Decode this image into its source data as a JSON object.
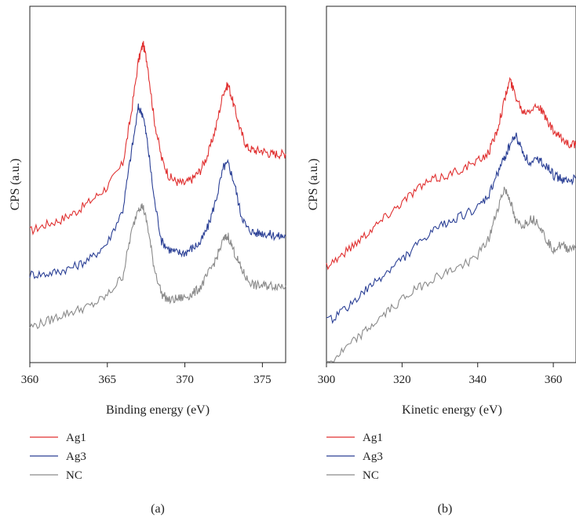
{
  "chart_data": [
    {
      "type": "line",
      "panel_label": "(a)",
      "xlabel": "Binding energy (eV)",
      "ylabel": "CPS (a.u.)",
      "xlim": [
        360,
        376.5
      ],
      "ylim": [
        0,
        1
      ],
      "x_ticks": [
        360,
        365,
        370,
        375
      ],
      "y_ticks_shown": false,
      "grid": false,
      "legend_position": "below",
      "colors": {
        "Ag1": "#e03030",
        "Ag3": "#2a3f95",
        "NC": "#8a8a8a"
      },
      "x": [
        360,
        361,
        362,
        363,
        364,
        365,
        366,
        366.5,
        367,
        367.3,
        367.6,
        368,
        368.5,
        369,
        369.5,
        370,
        370.5,
        371,
        371.5,
        372,
        372.5,
        372.8,
        373.2,
        373.6,
        374,
        374.5,
        375,
        375.5,
        376,
        376.5
      ],
      "series": [
        {
          "name": "Ag1",
          "values": [
            0.365,
            0.385,
            0.4,
            0.425,
            0.46,
            0.5,
            0.57,
            0.71,
            0.88,
            0.935,
            0.87,
            0.71,
            0.585,
            0.53,
            0.515,
            0.51,
            0.525,
            0.55,
            0.6,
            0.68,
            0.79,
            0.81,
            0.74,
            0.67,
            0.62,
            0.61,
            0.61,
            0.6,
            0.6,
            0.6
          ]
        },
        {
          "name": "Ag3",
          "values": [
            0.235,
            0.235,
            0.245,
            0.26,
            0.285,
            0.33,
            0.43,
            0.59,
            0.74,
            0.72,
            0.63,
            0.47,
            0.335,
            0.31,
            0.3,
            0.3,
            0.315,
            0.33,
            0.38,
            0.46,
            0.56,
            0.57,
            0.51,
            0.42,
            0.375,
            0.36,
            0.36,
            0.355,
            0.35,
            0.35
          ]
        },
        {
          "name": "NC",
          "values": [
            0.075,
            0.09,
            0.11,
            0.125,
            0.14,
            0.17,
            0.23,
            0.35,
            0.44,
            0.44,
            0.38,
            0.26,
            0.175,
            0.155,
            0.16,
            0.165,
            0.175,
            0.195,
            0.235,
            0.28,
            0.34,
            0.35,
            0.3,
            0.255,
            0.22,
            0.2,
            0.2,
            0.2,
            0.2,
            0.2
          ]
        }
      ]
    },
    {
      "type": "line",
      "panel_label": "(b)",
      "xlabel": "Kinetic energy (eV)",
      "ylabel": "CPS (a.u.)",
      "xlim": [
        300,
        366
      ],
      "ylim": [
        0,
        1
      ],
      "x_ticks": [
        300,
        320,
        340,
        360
      ],
      "y_ticks_shown": false,
      "grid": false,
      "legend_position": "below",
      "colors": {
        "Ag1": "#e03030",
        "Ag3": "#2a3f95",
        "NC": "#8a8a8a"
      },
      "x": [
        300,
        304,
        308,
        312,
        316,
        320,
        324,
        328,
        332,
        336,
        340,
        343,
        345,
        347,
        348.5,
        350,
        352,
        354,
        356,
        358,
        360,
        362,
        364,
        366
      ],
      "series": [
        {
          "name": "Ag1",
          "values": [
            0.3,
            0.33,
            0.37,
            0.41,
            0.45,
            0.49,
            0.53,
            0.555,
            0.57,
            0.59,
            0.61,
            0.64,
            0.7,
            0.79,
            0.855,
            0.81,
            0.76,
            0.77,
            0.78,
            0.74,
            0.7,
            0.68,
            0.665,
            0.66
          ]
        },
        {
          "name": "Ag3",
          "values": [
            0.13,
            0.16,
            0.2,
            0.24,
            0.28,
            0.32,
            0.36,
            0.4,
            0.43,
            0.45,
            0.47,
            0.51,
            0.57,
            0.62,
            0.66,
            0.69,
            0.64,
            0.6,
            0.62,
            0.6,
            0.57,
            0.56,
            0.55,
            0.56
          ]
        },
        {
          "name": "NC",
          "values": [
            0.0,
            0.04,
            0.08,
            0.12,
            0.16,
            0.2,
            0.23,
            0.26,
            0.28,
            0.3,
            0.33,
            0.38,
            0.46,
            0.53,
            0.5,
            0.43,
            0.42,
            0.44,
            0.43,
            0.38,
            0.35,
            0.36,
            0.35,
            0.36
          ]
        }
      ]
    }
  ]
}
